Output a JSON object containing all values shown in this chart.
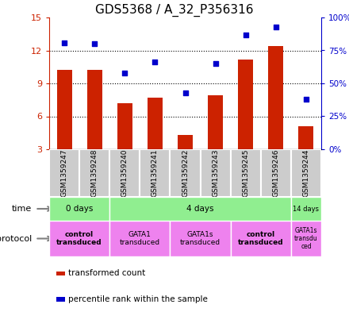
{
  "title": "GDS5368 / A_32_P356316",
  "samples": [
    "GSM1359247",
    "GSM1359248",
    "GSM1359240",
    "GSM1359241",
    "GSM1359242",
    "GSM1359243",
    "GSM1359245",
    "GSM1359246",
    "GSM1359244"
  ],
  "bar_values": [
    10.2,
    10.2,
    7.2,
    7.7,
    4.3,
    7.9,
    11.2,
    12.4,
    5.1
  ],
  "scatter_values": [
    81,
    80,
    58,
    66,
    43,
    65,
    87,
    93,
    38
  ],
  "ylim_left": [
    3,
    15
  ],
  "ylim_right": [
    0,
    100
  ],
  "yticks_left": [
    3,
    6,
    9,
    12,
    15
  ],
  "yticks_right": [
    0,
    25,
    50,
    75,
    100
  ],
  "bar_color": "#cc2200",
  "scatter_color": "#0000cc",
  "sample_bg_color": "#cccccc",
  "left_axis_color": "#cc2200",
  "right_axis_color": "#0000cc",
  "time_groups": [
    {
      "label": "0 days",
      "start": 0,
      "end": 2
    },
    {
      "label": "4 days",
      "start": 2,
      "end": 8
    },
    {
      "label": "14 days",
      "start": 8,
      "end": 9
    }
  ],
  "protocol_groups": [
    {
      "label": "control\ntransduced",
      "start": 0,
      "end": 2,
      "bold": true
    },
    {
      "label": "GATA1\ntransduced",
      "start": 2,
      "end": 4,
      "bold": false
    },
    {
      "label": "GATA1s\ntransduced",
      "start": 4,
      "end": 6,
      "bold": false
    },
    {
      "label": "control\ntransduced",
      "start": 6,
      "end": 8,
      "bold": true
    },
    {
      "label": "GATA1s\ntransdu\nced",
      "start": 8,
      "end": 9,
      "bold": false
    }
  ],
  "time_color": "#90ee90",
  "protocol_color": "#ee82ee",
  "grid_lines": [
    6,
    9,
    12
  ],
  "title_fontsize": 11,
  "bar_width": 0.5
}
